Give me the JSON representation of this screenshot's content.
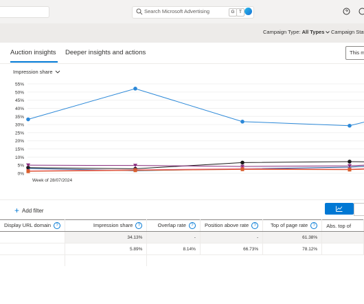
{
  "header": {
    "search_placeholder": "Search Microsoft Advertising",
    "shortcut_keys": [
      "G",
      "T"
    ]
  },
  "filters": {
    "campaign_type_label": "Campaign Type:",
    "campaign_type_value": "All Types",
    "campaign_status_label": "Campaign Statu"
  },
  "tabs": [
    {
      "label": "Auction insights",
      "active": true
    },
    {
      "label": "Deeper insights and actions",
      "active": false
    }
  ],
  "date_range_label": "This mo",
  "metric_dropdown_label": "Impression share",
  "chart_data": {
    "type": "line",
    "ylabels": [
      "55%",
      "50%",
      "45%",
      "40%",
      "35%",
      "30%",
      "25%",
      "20%",
      "15%",
      "10%",
      "5%",
      "0%"
    ],
    "ylim": [
      0,
      55
    ],
    "x_points": 5,
    "x_tick_label": "Week of 28/07/2024",
    "series": [
      {
        "color": "#2b88d8",
        "marker": "circle",
        "values": [
          33.2,
          52.1,
          31.8,
          29.3,
          32.5
        ]
      },
      {
        "color": "#1b1a19",
        "marker": "circle",
        "values": [
          3.5,
          2.8,
          6.6,
          7.2,
          7.0
        ]
      },
      {
        "color": "#8b2d7f",
        "marker": "triangle",
        "values": [
          5.0,
          4.8,
          4.2,
          4.6,
          5.2
        ]
      },
      {
        "color": "#0f4a8a",
        "marker": "none",
        "values": [
          3.0,
          1.6,
          2.7,
          3.8,
          4.5
        ]
      },
      {
        "color": "#e8516a",
        "marker": "square",
        "values": [
          1.5,
          2.1,
          2.8,
          2.5,
          3.0
        ]
      },
      {
        "color": "#d95f2f",
        "marker": "square",
        "values": [
          1.2,
          1.8,
          2.4,
          2.2,
          2.6
        ]
      }
    ]
  },
  "toolbar": {
    "add_filter_label": "Add filter"
  },
  "table": {
    "columns": [
      "Display URL domain",
      "Impression share",
      "Overlap rate",
      "Position above rate",
      "Top of page rate",
      "Abs. top of"
    ],
    "rows": [
      {
        "domain": "",
        "impression_share": "34.13%",
        "overlap_rate": "-",
        "position_above_rate": "-",
        "top_of_page_rate": "61.38%",
        "abs_top": ""
      },
      {
        "domain": "",
        "impression_share": "5.89%",
        "overlap_rate": "8.14%",
        "position_above_rate": "66.73%",
        "top_of_page_rate": "78.12%",
        "abs_top": ""
      }
    ]
  }
}
